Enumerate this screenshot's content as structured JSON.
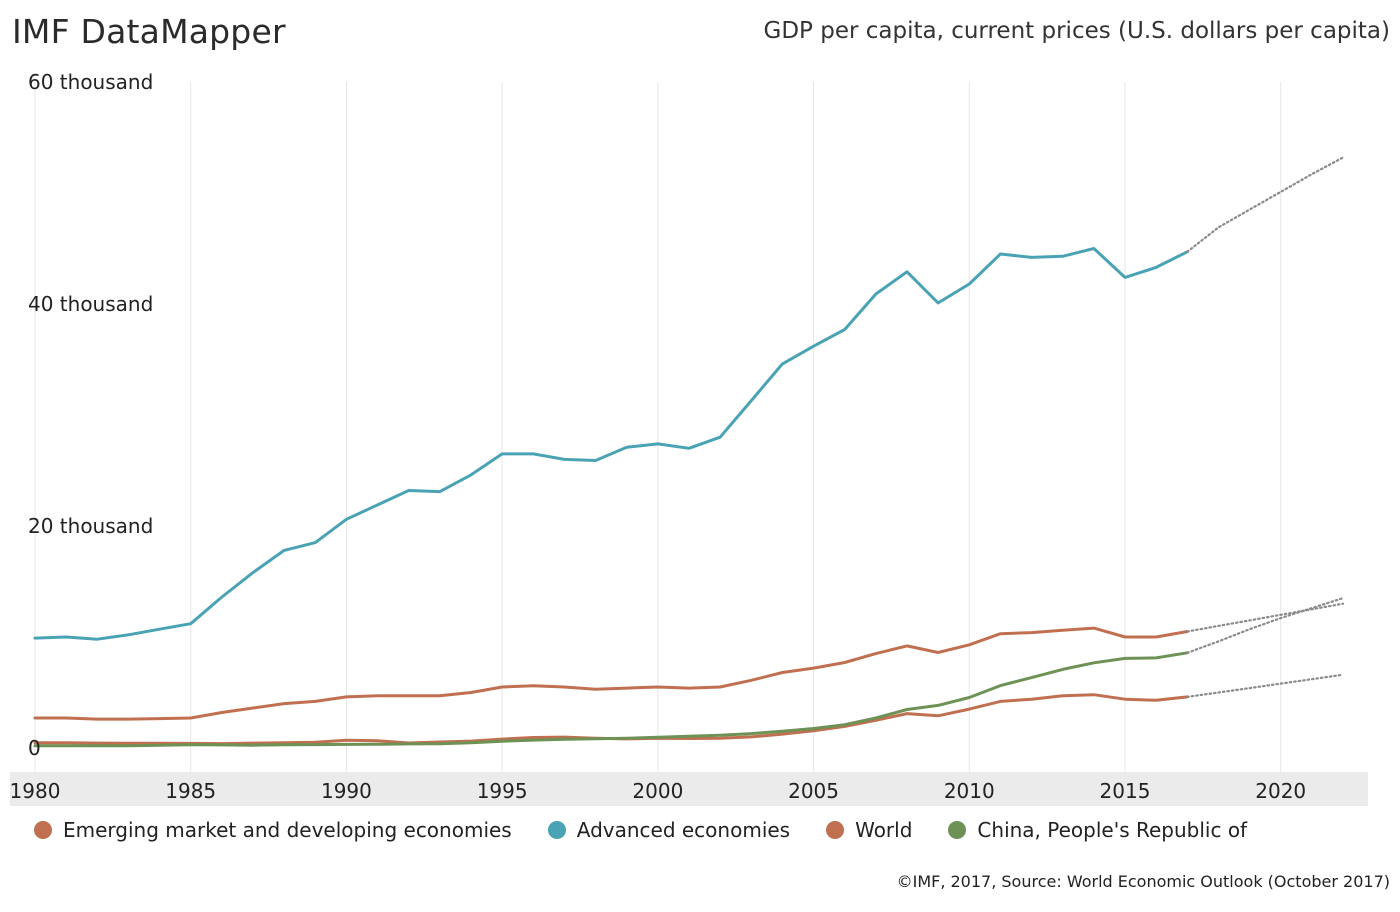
{
  "header": {
    "brand": "IMF DataMapper",
    "subtitle": "GDP per capita, current prices (U.S. dollars per capita)"
  },
  "footer": {
    "credit": "©IMF, 2017, Source: World Economic Outlook (October 2017)"
  },
  "chart_data": {
    "type": "line",
    "title": "GDP per capita, current prices (U.S. dollars per capita)",
    "xlabel": "",
    "ylabel": "",
    "ylim": [
      0,
      60000
    ],
    "xlim": [
      1980,
      2022
    ],
    "y_ticks": [
      {
        "value": 0,
        "label": "0"
      },
      {
        "value": 20000,
        "label": "20 thousand"
      },
      {
        "value": 40000,
        "label": "40 thousand"
      },
      {
        "value": 60000,
        "label": "60 thousand"
      }
    ],
    "x_ticks": [
      1980,
      1985,
      1990,
      1995,
      2000,
      2005,
      2010,
      2015,
      2020
    ],
    "grid": true,
    "legend_position": "bottom",
    "actual_end_year": 2017,
    "projection_style": "dotted",
    "series": [
      {
        "name": "Advanced economies",
        "color": "#4aa3b5",
        "x": [
          1980,
          1981,
          1982,
          1983,
          1984,
          1985,
          1986,
          1987,
          1988,
          1989,
          1990,
          1991,
          1992,
          1993,
          1994,
          1995,
          1996,
          1997,
          1998,
          1999,
          2000,
          2001,
          2002,
          2003,
          2004,
          2005,
          2006,
          2007,
          2008,
          2009,
          2010,
          2011,
          2012,
          2013,
          2014,
          2015,
          2016,
          2017,
          2018,
          2019,
          2020,
          2021,
          2022
        ],
        "values": [
          9900,
          10000,
          9800,
          10200,
          10700,
          11200,
          13600,
          15800,
          17800,
          18500,
          20600,
          21900,
          23200,
          23100,
          24600,
          26500,
          26500,
          26000,
          25900,
          27100,
          27400,
          27000,
          28000,
          31300,
          34600,
          36200,
          37700,
          40900,
          42900,
          40100,
          41800,
          44500,
          44200,
          44300,
          45000,
          42400,
          43300,
          44700,
          46900,
          48500,
          50100,
          51700,
          53200
        ]
      },
      {
        "name": "World",
        "color": "#c07050",
        "x": [
          1980,
          1981,
          1982,
          1983,
          1984,
          1985,
          1986,
          1987,
          1988,
          1989,
          1990,
          1991,
          1992,
          1993,
          1994,
          1995,
          1996,
          1997,
          1998,
          1999,
          2000,
          2001,
          2002,
          2003,
          2004,
          2005,
          2006,
          2007,
          2008,
          2009,
          2010,
          2011,
          2012,
          2013,
          2014,
          2015,
          2016,
          2017,
          2018,
          2019,
          2020,
          2021,
          2022
        ],
        "values": [
          2700,
          2700,
          2600,
          2600,
          2650,
          2700,
          3200,
          3600,
          4000,
          4200,
          4600,
          4700,
          4700,
          4700,
          5000,
          5500,
          5600,
          5500,
          5300,
          5400,
          5500,
          5400,
          5500,
          6100,
          6800,
          7200,
          7700,
          8500,
          9200,
          8600,
          9300,
          10300,
          10400,
          10600,
          10800,
          10000,
          10000,
          10500,
          11000,
          11500,
          12000,
          12500,
          13000
        ]
      },
      {
        "name": "Emerging market and developing economies",
        "color": "#c07050",
        "x": [
          1980,
          1981,
          1982,
          1983,
          1984,
          1985,
          1986,
          1987,
          1988,
          1989,
          1990,
          1991,
          1992,
          1993,
          1994,
          1995,
          1996,
          1997,
          1998,
          1999,
          2000,
          2001,
          2002,
          2003,
          2004,
          2005,
          2006,
          2007,
          2008,
          2009,
          2010,
          2011,
          2012,
          2013,
          2014,
          2015,
          2016,
          2017,
          2018,
          2019,
          2020,
          2021,
          2022
        ],
        "values": [
          480,
          470,
          440,
          420,
          420,
          410,
          400,
          440,
          480,
          520,
          700,
          650,
          450,
          540,
          620,
          800,
          950,
          980,
          880,
          820,
          880,
          860,
          880,
          1000,
          1250,
          1550,
          1950,
          2500,
          3100,
          2900,
          3500,
          4200,
          4400,
          4700,
          4800,
          4400,
          4300,
          4600,
          5000,
          5400,
          5800,
          6200,
          6600
        ]
      },
      {
        "name": "China, People's Republic of",
        "color": "#6e9155",
        "x": [
          1980,
          1981,
          1982,
          1983,
          1984,
          1985,
          1986,
          1987,
          1988,
          1989,
          1990,
          1991,
          1992,
          1993,
          1994,
          1995,
          1996,
          1997,
          1998,
          1999,
          2000,
          2001,
          2002,
          2003,
          2004,
          2005,
          2006,
          2007,
          2008,
          2009,
          2010,
          2011,
          2012,
          2013,
          2014,
          2015,
          2016,
          2017,
          2018,
          2019,
          2020,
          2021,
          2022
        ],
        "values": [
          195,
          200,
          205,
          210,
          250,
          290,
          280,
          250,
          300,
          310,
          320,
          330,
          370,
          380,
          470,
          610,
          710,
          790,
          830,
          870,
          960,
          1050,
          1150,
          1300,
          1510,
          1760,
          2100,
          2700,
          3470,
          3840,
          4550,
          5620,
          6340,
          7080,
          7680,
          8070,
          8120,
          8580,
          9600,
          10700,
          11700,
          12600,
          13500
        ]
      }
    ]
  }
}
